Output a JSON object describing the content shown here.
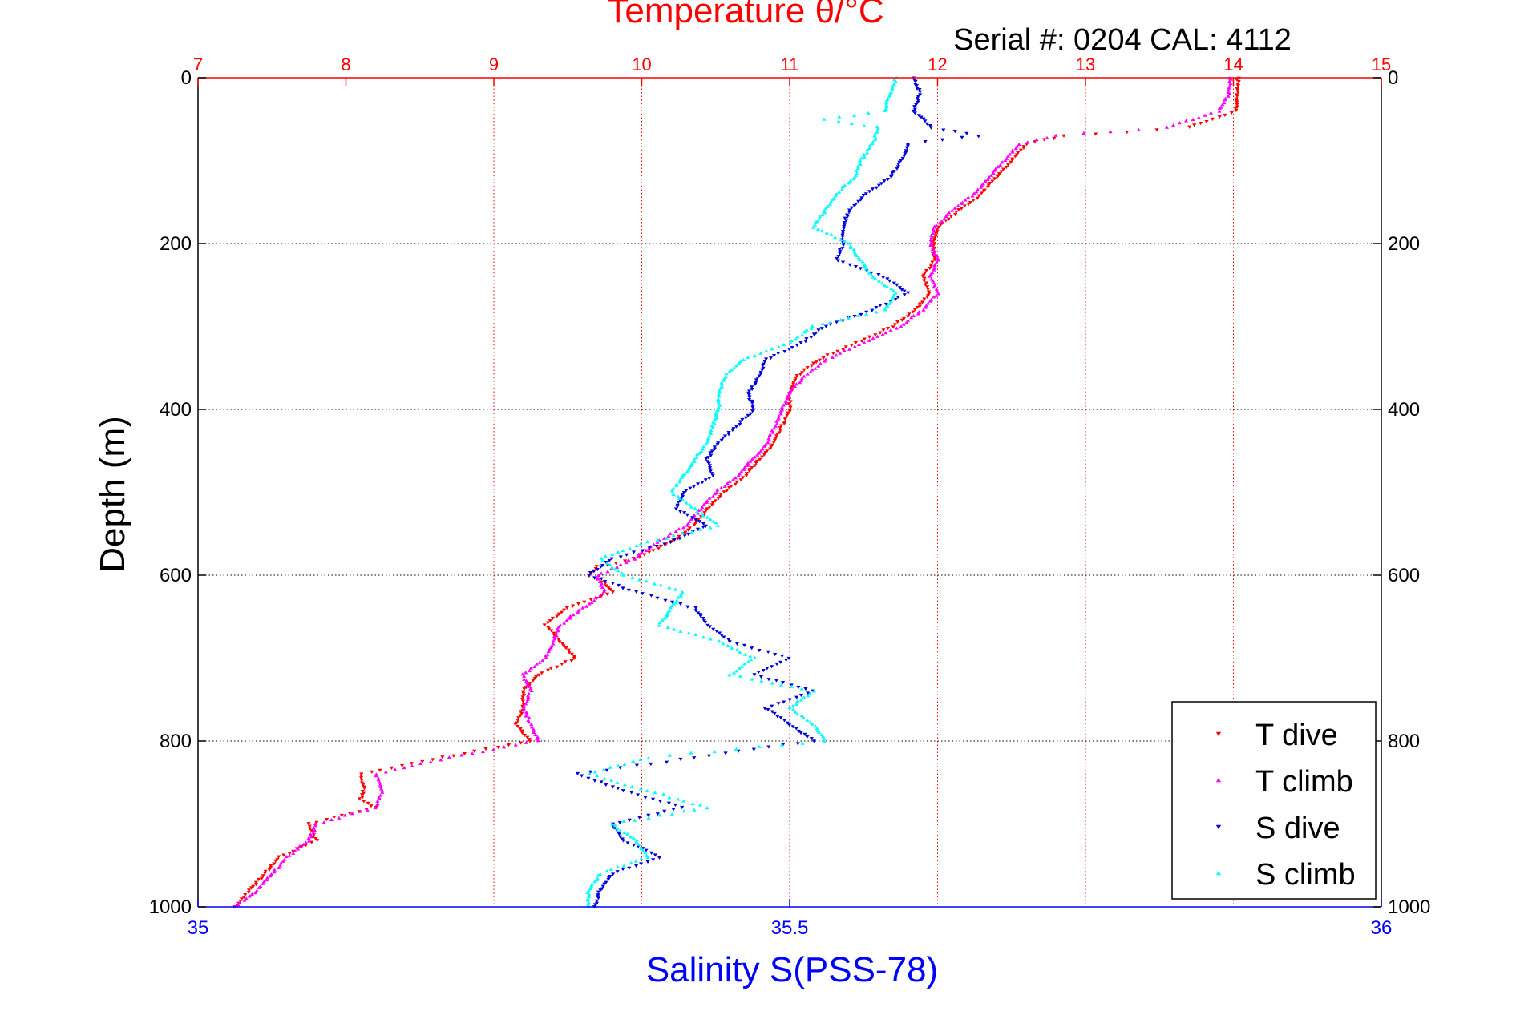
{
  "chart_data": {
    "type": "scatter",
    "title": "Temperature θ/°C",
    "subtitle": "Serial #: 0204  CAL: 4112",
    "xlabel_bottom": "Salinity S(PSS-78)",
    "xlabel_top": "Temperature θ/°C",
    "ylabel": "Depth (m)",
    "xlim_bottom": [
      35,
      36
    ],
    "xticks_bottom": [
      "35",
      "35.5",
      "36"
    ],
    "xlim_top": [
      7,
      15
    ],
    "xticks_top": [
      "7",
      "8",
      "9",
      "10",
      "11",
      "12",
      "13",
      "14",
      "15"
    ],
    "ylim": [
      0,
      1000
    ],
    "y_reversed": true,
    "yticks": [
      "0",
      "200",
      "400",
      "600",
      "800",
      "1000"
    ],
    "grid": true,
    "legend_position": "bottom-right",
    "colors": {
      "t_dive": "#ff0000",
      "t_climb": "#ff00ff",
      "s_dive": "#0000dd",
      "s_climb": "#00ffff",
      "top_axis": "#ff0000",
      "bottom_axis": "#0000ff"
    },
    "series": [
      {
        "name": "T dive",
        "axis": "temperature",
        "marker": "triangle-down",
        "color": "#ff0000",
        "depth": [
          0,
          20,
          40,
          60,
          70,
          80,
          100,
          120,
          140,
          160,
          180,
          200,
          220,
          240,
          260,
          280,
          300,
          320,
          340,
          360,
          380,
          400,
          420,
          440,
          460,
          480,
          500,
          520,
          540,
          560,
          580,
          590,
          600,
          610,
          620,
          640,
          660,
          680,
          700,
          720,
          740,
          760,
          780,
          800,
          820,
          840,
          860,
          870,
          880,
          900,
          920,
          940,
          960,
          980,
          1000
        ],
        "values": [
          14.03,
          14.03,
          14.02,
          13.7,
          12.85,
          12.6,
          12.5,
          12.4,
          12.3,
          12.15,
          12.0,
          11.97,
          11.98,
          11.9,
          11.95,
          11.85,
          11.7,
          11.45,
          11.2,
          11.05,
          11.0,
          11.0,
          10.95,
          10.9,
          10.8,
          10.7,
          10.55,
          10.45,
          10.35,
          10.2,
          9.95,
          9.7,
          9.65,
          9.75,
          9.8,
          9.5,
          9.35,
          9.45,
          9.55,
          9.3,
          9.2,
          9.2,
          9.15,
          9.25,
          8.65,
          8.1,
          8.12,
          8.1,
          8.2,
          7.75,
          7.8,
          7.55,
          7.45,
          7.35,
          7.25
        ]
      },
      {
        "name": "T climb",
        "axis": "temperature",
        "marker": "triangle-up",
        "color": "#ff00ff",
        "depth": [
          0,
          20,
          40,
          60,
          70,
          80,
          100,
          120,
          140,
          160,
          180,
          200,
          220,
          240,
          260,
          280,
          300,
          320,
          340,
          360,
          380,
          400,
          420,
          440,
          460,
          480,
          500,
          520,
          540,
          560,
          580,
          600,
          620,
          640,
          660,
          680,
          700,
          720,
          740,
          760,
          780,
          800,
          820,
          840,
          860,
          880,
          900,
          920,
          940,
          960,
          980,
          1000
        ],
        "values": [
          13.98,
          13.97,
          13.9,
          13.55,
          12.8,
          12.55,
          12.45,
          12.35,
          12.25,
          12.1,
          11.98,
          11.95,
          12.0,
          11.95,
          12.0,
          11.9,
          11.75,
          11.5,
          11.25,
          11.1,
          11.0,
          10.95,
          10.9,
          10.85,
          10.75,
          10.65,
          10.5,
          10.4,
          10.3,
          10.1,
          9.95,
          9.7,
          9.75,
          9.6,
          9.45,
          9.4,
          9.35,
          9.2,
          9.25,
          9.2,
          9.25,
          9.3,
          8.7,
          8.2,
          8.25,
          8.2,
          7.8,
          7.75,
          7.6,
          7.5,
          7.4,
          7.25
        ]
      },
      {
        "name": "S dive",
        "axis": "salinity",
        "marker": "triangle-down",
        "color": "#0000dd",
        "depth": [
          0,
          20,
          40,
          60,
          70,
          80,
          100,
          120,
          140,
          160,
          180,
          200,
          220,
          240,
          260,
          280,
          300,
          320,
          340,
          360,
          380,
          400,
          420,
          440,
          460,
          480,
          500,
          520,
          540,
          560,
          580,
          600,
          620,
          640,
          660,
          680,
          700,
          720,
          740,
          760,
          780,
          800,
          820,
          840,
          860,
          880,
          900,
          920,
          940,
          960,
          980,
          1000
        ],
        "values": [
          35.605,
          35.61,
          35.605,
          35.62,
          35.66,
          35.6,
          35.595,
          35.585,
          35.565,
          35.55,
          35.545,
          35.545,
          35.54,
          35.58,
          35.6,
          35.57,
          35.53,
          35.51,
          35.48,
          35.475,
          35.465,
          35.47,
          35.455,
          35.44,
          35.43,
          35.435,
          35.41,
          35.405,
          35.43,
          35.4,
          35.35,
          35.33,
          35.37,
          35.42,
          35.43,
          35.45,
          35.5,
          35.47,
          35.52,
          35.48,
          35.5,
          35.52,
          35.42,
          35.32,
          35.36,
          35.41,
          35.35,
          35.36,
          35.39,
          35.35,
          35.34,
          35.335
        ]
      },
      {
        "name": "S climb",
        "axis": "salinity",
        "marker": "triangle-up",
        "color": "#00ffff",
        "depth": [
          0,
          20,
          40,
          50,
          60,
          80,
          100,
          120,
          140,
          160,
          180,
          200,
          220,
          240,
          260,
          280,
          300,
          320,
          340,
          360,
          380,
          400,
          420,
          440,
          460,
          480,
          500,
          520,
          540,
          560,
          580,
          600,
          620,
          640,
          660,
          680,
          700,
          720,
          740,
          760,
          780,
          800,
          820,
          840,
          860,
          880,
          900,
          920,
          940,
          960,
          980,
          1000
        ],
        "values": [
          35.59,
          35.585,
          35.58,
          35.53,
          35.575,
          35.57,
          35.56,
          35.555,
          35.54,
          35.53,
          35.52,
          35.55,
          35.56,
          35.57,
          35.59,
          35.58,
          35.52,
          35.5,
          35.46,
          35.445,
          35.44,
          35.44,
          35.435,
          35.43,
          35.42,
          35.41,
          35.4,
          35.42,
          35.44,
          35.38,
          35.34,
          35.36,
          35.41,
          35.4,
          35.39,
          35.44,
          35.47,
          35.45,
          35.52,
          35.5,
          35.52,
          35.53,
          35.38,
          35.33,
          35.38,
          35.43,
          35.35,
          35.37,
          35.38,
          35.34,
          35.33,
          35.33
        ]
      }
    ]
  }
}
